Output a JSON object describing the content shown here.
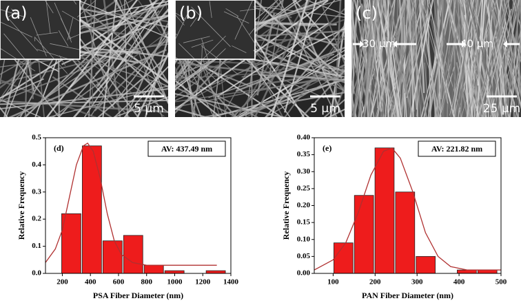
{
  "images": [
    {
      "label": "(a)",
      "scale": "5 μm"
    },
    {
      "label": "(b)",
      "scale": "5 μm"
    },
    {
      "label": "(c)",
      "scale": "25 μm",
      "annotations": [
        "30 μm",
        "40 μm"
      ]
    }
  ],
  "chart_data": [
    {
      "type": "histogram",
      "panel": "(d)",
      "annotation": "AV: 437.49 nm",
      "xlabel": "PSA Fiber Diameter (nm)",
      "ylabel": "Relative Frequency",
      "bins": [
        190,
        337,
        484,
        631,
        778,
        925,
        1072,
        1219,
        1366
      ],
      "values": [
        0.22,
        0.47,
        0.12,
        0.14,
        0.03,
        0.01,
        0,
        0.01
      ],
      "color": "#ee1c1c",
      "curve": {
        "color": "#b03030",
        "x": [
          80,
          150,
          200,
          250,
          300,
          350,
          380,
          420,
          470,
          520,
          570,
          620,
          700,
          800,
          1000,
          1300
        ],
        "values": [
          0.04,
          0.09,
          0.16,
          0.28,
          0.4,
          0.47,
          0.48,
          0.45,
          0.35,
          0.22,
          0.12,
          0.07,
          0.04,
          0.03,
          0.03,
          0.03
        ]
      },
      "xlim": [
        80,
        1400
      ],
      "xticks": [
        200,
        400,
        600,
        800,
        1000,
        1200,
        1400
      ],
      "ylim": [
        0,
        0.5
      ],
      "yticks": [
        {
          "value": 0,
          "label": "0.0"
        },
        0.1,
        0.2,
        0.3,
        0.4,
        0.5
      ]
    },
    {
      "type": "histogram",
      "panel": "(e)",
      "annotation": "AV: 221.82 nm",
      "xlabel": "PAN Fiber Diameter (nm)",
      "ylabel": "Relative Frequency",
      "bins": [
        100,
        149,
        198,
        247,
        296,
        345,
        394,
        443,
        492
      ],
      "values": [
        0.09,
        0.23,
        0.37,
        0.24,
        0.05,
        0,
        0.01,
        0.01
      ],
      "color": "#ee1c1c",
      "curve": {
        "color": "#b03030",
        "x": [
          55,
          100,
          130,
          160,
          190,
          220,
          240,
          260,
          290,
          320,
          350,
          380,
          420,
          500
        ],
        "values": [
          0.01,
          0.04,
          0.09,
          0.18,
          0.29,
          0.36,
          0.37,
          0.34,
          0.24,
          0.12,
          0.05,
          0.02,
          0.01,
          0.01
        ]
      },
      "xlim": [
        55,
        500
      ],
      "xticks": [
        100,
        200,
        300,
        400,
        500
      ],
      "ylim": [
        0,
        0.4
      ],
      "yticks": [
        {
          "value": 0,
          "label": "0.00"
        },
        {
          "value": 0.05,
          "label": "0.05"
        },
        {
          "value": 0.1,
          "label": "0.10"
        },
        {
          "value": 0.15,
          "label": "0.15"
        },
        {
          "value": 0.2,
          "label": "0.20"
        },
        {
          "value": 0.25,
          "label": "0.25"
        },
        {
          "value": 0.3,
          "label": "0.30"
        },
        {
          "value": 0.35,
          "label": "0.35"
        },
        {
          "value": 0.4,
          "label": "0.40"
        }
      ]
    }
  ]
}
